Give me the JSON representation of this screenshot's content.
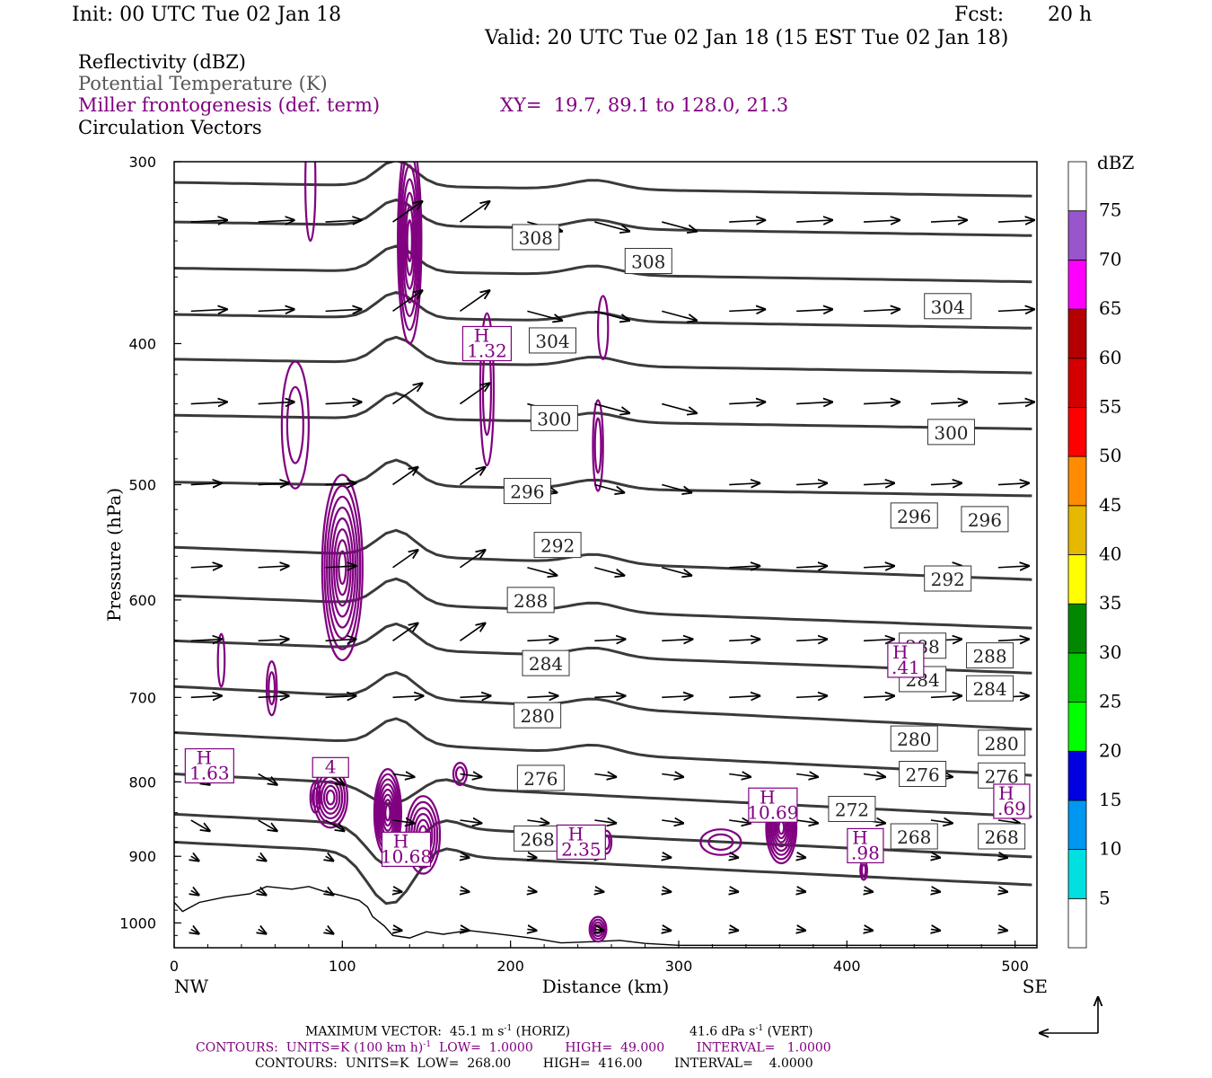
{
  "header": {
    "init": "Init: 00 UTC Tue 02 Jan 18",
    "fcst_label": "Fcst:",
    "fcst_value": "20 h",
    "valid": "Valid: 20 UTC Tue 02 Jan 18 (15 EST Tue 02 Jan 18)"
  },
  "legend": {
    "line1": "Reflectivity (dBZ)",
    "line2": "Potential Temperature (K)",
    "line3": "Miller frontogenesis (def. term)",
    "xy": "XY=  19.7, 89.1 to 128.0, 21.3",
    "line4": "Circulation Vectors"
  },
  "colors": {
    "theta": "#3a3a3a",
    "fronto": "#800080",
    "vectors": "#000000"
  },
  "chart_data": {
    "type": "cross-section",
    "ylabel": "Pressure (hPa)",
    "xlabel": "Distance (km)",
    "xlim": [
      0,
      513
    ],
    "ylim": [
      1040,
      300
    ],
    "y_log_scale": true,
    "x_ticks": [
      "0",
      "100",
      "200",
      "300",
      "400",
      "500"
    ],
    "y_ticks": [
      "300",
      "400",
      "500",
      "600",
      "700",
      "800",
      "900",
      "1000"
    ],
    "x_left_label": "NW",
    "x_right_label": "SE",
    "colorbar": {
      "title": "dBZ",
      "labels": [
        "5",
        "10",
        "15",
        "20",
        "25",
        "30",
        "35",
        "40",
        "45",
        "50",
        "55",
        "60",
        "65",
        "70",
        "75"
      ],
      "colors": [
        "#ffffff",
        "#00e0e0",
        "#0097f0",
        "#0000e0",
        "#00ff00",
        "#00c800",
        "#008800",
        "#ffff00",
        "#e6b800",
        "#ff8c00",
        "#ff0000",
        "#d40000",
        "#b40000",
        "#ff00ff",
        "#9955cc",
        "#ffffff"
      ]
    },
    "theta_contours": [
      {
        "value": 268,
        "labels": [
          "268",
          "268",
          "268"
        ]
      },
      {
        "value": 272,
        "labels": [
          "272"
        ]
      },
      {
        "value": 276,
        "labels": [
          "276",
          "276",
          "276"
        ]
      },
      {
        "value": 280,
        "labels": [
          "280",
          "280",
          "280"
        ]
      },
      {
        "value": 284,
        "labels": [
          "284",
          "284",
          "284"
        ]
      },
      {
        "value": 288,
        "labels": [
          "288",
          "288",
          "288"
        ]
      },
      {
        "value": 292,
        "labels": [
          "292",
          "292"
        ]
      },
      {
        "value": 296,
        "labels": [
          "296",
          "296",
          "296"
        ]
      },
      {
        "value": 300,
        "labels": [
          "300",
          "300"
        ]
      },
      {
        "value": 304,
        "labels": [
          "304",
          "304"
        ]
      },
      {
        "value": 308,
        "labels": [
          "308",
          "308"
        ]
      }
    ],
    "fronto_maxima": [
      {
        "letter": "H",
        "value": "1.63",
        "x_km": 21,
        "p": 780
      },
      {
        "letter": "",
        "value": "4",
        "x_km": 93,
        "p": 782
      },
      {
        "letter": "H",
        "value": "1.32",
        "x_km": 186,
        "p": 400
      },
      {
        "letter": "H",
        "value": "10.68",
        "x_km": 138,
        "p": 890
      },
      {
        "letter": "H",
        "value": "2.35",
        "x_km": 242,
        "p": 880
      },
      {
        "letter": "H",
        "value": "10.69",
        "x_km": 356,
        "p": 830
      },
      {
        "letter": "H",
        "value": ".98",
        "x_km": 411,
        "p": 885
      },
      {
        "letter": "H",
        "value": ".41",
        "x_km": 435,
        "p": 660
      },
      {
        "letter": "H",
        "value": ".69",
        "x_km": 498,
        "p": 825
      }
    ],
    "max_vector_horiz": "45.1",
    "max_vector_vert": "41.6"
  },
  "footer": {
    "maxvec_left": "MAXIMUM VECTOR:  45.1 m s",
    "maxvec_left_sup": "-1",
    "maxvec_left_end": " (HORIZ)",
    "maxvec_right": "41.6 dPa s",
    "maxvec_right_sup": "-1",
    "maxvec_right_end": " (VERT)",
    "contours1_a": "CONTOURS:  UNITS=K (100 km h)",
    "contours1_sup": "-1",
    "contours1_b": "  LOW=  1.0000        HIGH=  49.000        INTERVAL=   1.0000",
    "contours2": "CONTOURS:  UNITS=K  LOW=  268.00        HIGH=  416.00        INTERVAL=    4.0000"
  }
}
